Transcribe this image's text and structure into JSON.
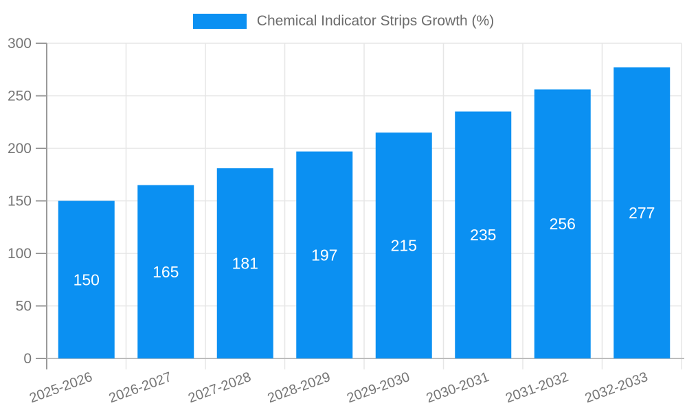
{
  "legend": {
    "label": "Chemical Indicator Strips Growth (%)"
  },
  "chart_data": {
    "type": "bar",
    "title": "Chemical Indicator Strips Growth (%)",
    "categories": [
      "2025-2026",
      "2026-2027",
      "2027-2028",
      "2028-2029",
      "2029-2030",
      "2030-2031",
      "2031-2032",
      "2032-2033"
    ],
    "values": [
      150,
      165,
      181,
      197,
      215,
      235,
      256,
      277
    ],
    "xlabel": "",
    "ylabel": "",
    "ylim": [
      0,
      300
    ],
    "yticks": [
      0,
      50,
      100,
      150,
      200,
      250,
      300
    ],
    "grid": true,
    "legend_position": "top-center",
    "value_labels": "inside-center",
    "x_label_rotation_deg": -20,
    "colors": {
      "bar": "#0b90f2",
      "value_label": "#ffffff",
      "tick_label": "#757575",
      "axis": "#9a9a9a",
      "x_axis_line": "#bdbdbd",
      "grid": "#e6e6e6",
      "legend_text": "#6b6b6b",
      "background": "#ffffff"
    }
  }
}
